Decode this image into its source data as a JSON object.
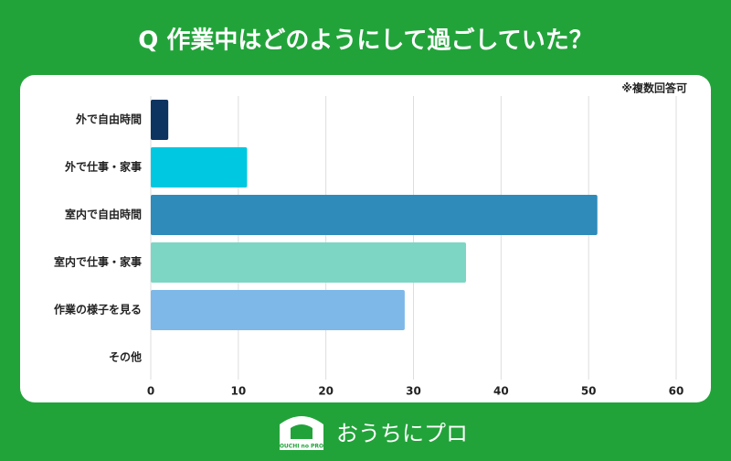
{
  "chart_data": {
    "type": "bar",
    "orientation": "horizontal",
    "title": "Q 作業中はどのようにして過ごしていた？",
    "note": "※複数回答可",
    "categories": [
      "外で自由時間",
      "外で仕事・家事",
      "室内で自由時間",
      "室内で仕事・家事",
      "作業の様子を見る",
      "その他"
    ],
    "values": [
      2,
      11,
      51,
      36,
      29,
      0
    ],
    "colors": [
      "#0d3461",
      "#00c8e0",
      "#2e8bba",
      "#7dd6c4",
      "#7db8e8",
      "#cccccc"
    ],
    "xlim": [
      0,
      60
    ],
    "xticks": [
      0,
      10,
      20,
      30,
      40,
      50,
      60
    ],
    "grid": true
  },
  "logo": {
    "text": "おうちにプロ",
    "icon_text": "OUCHI no PRO"
  }
}
